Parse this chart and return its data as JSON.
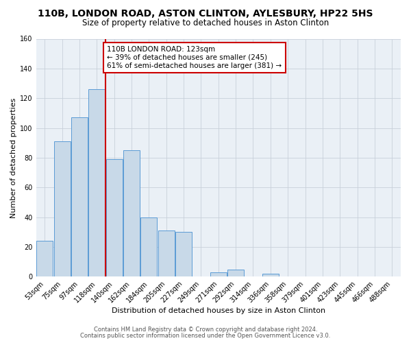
{
  "title": "110B, LONDON ROAD, ASTON CLINTON, AYLESBURY, HP22 5HS",
  "subtitle": "Size of property relative to detached houses in Aston Clinton",
  "xlabel": "Distribution of detached houses by size in Aston Clinton",
  "ylabel": "Number of detached properties",
  "footer_line1": "Contains HM Land Registry data © Crown copyright and database right 2024.",
  "footer_line2": "Contains public sector information licensed under the Open Government Licence v3.0.",
  "annotation_title": "110B LONDON ROAD: 123sqm",
  "annotation_line2": "← 39% of detached houses are smaller (245)",
  "annotation_line3": "61% of semi-detached houses are larger (381) →",
  "bar_labels": [
    "53sqm",
    "75sqm",
    "97sqm",
    "118sqm",
    "140sqm",
    "162sqm",
    "184sqm",
    "205sqm",
    "227sqm",
    "249sqm",
    "271sqm",
    "292sqm",
    "314sqm",
    "336sqm",
    "358sqm",
    "379sqm",
    "401sqm",
    "423sqm",
    "445sqm",
    "466sqm",
    "488sqm"
  ],
  "bar_values": [
    24,
    91,
    107,
    126,
    79,
    85,
    40,
    31,
    30,
    0,
    3,
    5,
    0,
    2,
    0,
    0,
    0,
    0,
    0,
    0,
    0
  ],
  "bar_color": "#c8d9e8",
  "bar_edge_color": "#5b9bd5",
  "ref_line_x": 3.5,
  "ref_line_color": "#cc0000",
  "annotation_box_edge": "#cc0000",
  "annotation_box_bg": "#ffffff",
  "ylim": [
    0,
    160
  ],
  "yticks": [
    0,
    20,
    40,
    60,
    80,
    100,
    120,
    140,
    160
  ],
  "bg_color": "#ffffff",
  "plot_bg_color": "#eaf0f6",
  "grid_color": "#c8d0da",
  "title_fontsize": 10,
  "subtitle_fontsize": 8.5,
  "axis_label_fontsize": 8,
  "tick_fontsize": 7,
  "annotation_fontsize": 7.5
}
